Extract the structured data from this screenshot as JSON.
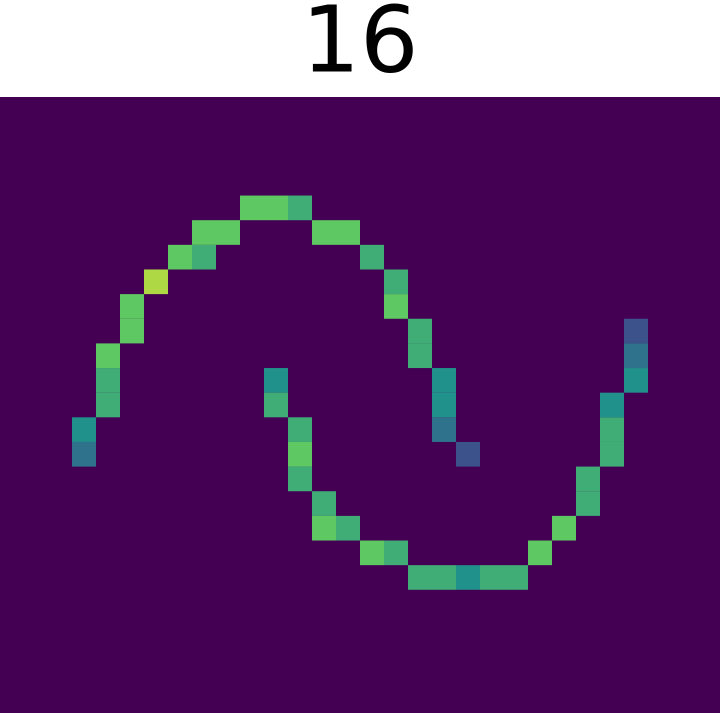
{
  "chart_data": {
    "type": "hist2d",
    "title": "16",
    "colormap": "viridis",
    "clim": [
      0,
      8
    ],
    "xlim": [
      0,
      30
    ],
    "ylim": [
      25,
      0
    ],
    "x": [
      3,
      3,
      4,
      4,
      4,
      5,
      5,
      6,
      7,
      8,
      8,
      9,
      10,
      11,
      12,
      13,
      14,
      15,
      16,
      16,
      17,
      17,
      18,
      18,
      18,
      19,
      11,
      11,
      12,
      12,
      12,
      13,
      13,
      14,
      15,
      16,
      17,
      18,
      19,
      20,
      21,
      22,
      23,
      24,
      24,
      25,
      25,
      25,
      26,
      26,
      26
    ],
    "y": [
      14,
      13,
      12,
      11,
      10,
      9,
      8,
      7,
      6,
      6,
      5,
      5,
      4,
      4,
      4,
      5,
      5,
      6,
      7,
      8,
      9,
      10,
      11,
      12,
      13,
      14,
      11,
      12,
      13,
      14,
      15,
      16,
      17,
      17,
      18,
      18,
      19,
      19,
      19,
      19,
      19,
      18,
      17,
      16,
      15,
      14,
      13,
      12,
      11,
      10,
      9
    ],
    "values": [
      3,
      4,
      5,
      5,
      6,
      6,
      6,
      7,
      6,
      5,
      6,
      6,
      6,
      6,
      5,
      6,
      6,
      5,
      5,
      6,
      5,
      5,
      4,
      4,
      3,
      2,
      4,
      5,
      5,
      6,
      5,
      5,
      6,
      5,
      6,
      5,
      5,
      5,
      4,
      5,
      5,
      6,
      6,
      5,
      5,
      5,
      5,
      4,
      4,
      3,
      2
    ]
  }
}
